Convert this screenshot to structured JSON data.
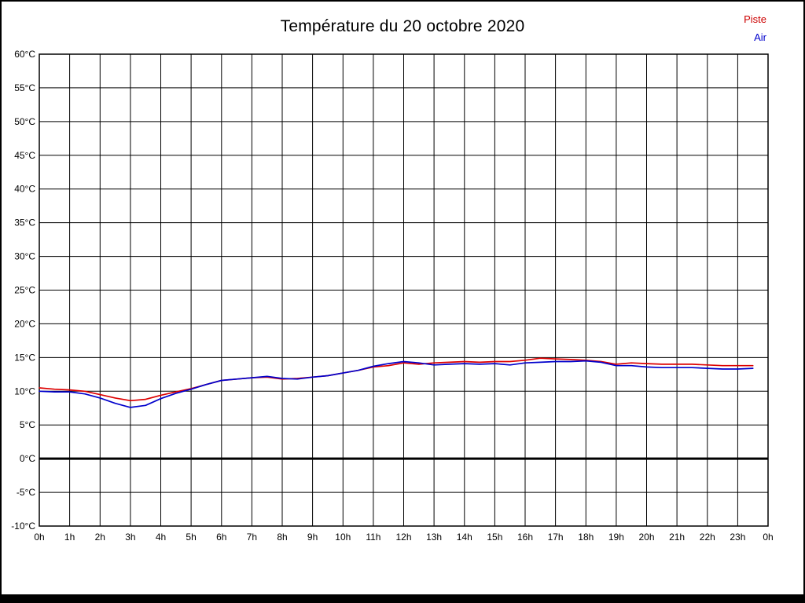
{
  "page": {
    "background": "#ffffff",
    "border_color": "#000000"
  },
  "chart_data": {
    "type": "line",
    "title": "Température du 20 octobre 2020",
    "xlabel": "",
    "ylabel": "",
    "ylim": [
      -10,
      60
    ],
    "grid": true,
    "grid_color": "#000000",
    "axis_text_color": "#000000",
    "zero_line": {
      "value": 0,
      "color": "#000000",
      "width": 3
    },
    "y_tick_values": [
      -10,
      -5,
      0,
      5,
      10,
      15,
      20,
      25,
      30,
      35,
      40,
      45,
      50,
      55,
      60
    ],
    "y_tick_labels": [
      "-10°C",
      "-5°C",
      "0°C",
      "5°C",
      "10°C",
      "15°C",
      "20°C",
      "25°C",
      "30°C",
      "35°C",
      "40°C",
      "45°C",
      "50°C",
      "55°C",
      "60°C"
    ],
    "x_tick_labels": [
      "0h",
      "1h",
      "2h",
      "3h",
      "4h",
      "5h",
      "6h",
      "7h",
      "8h",
      "9h",
      "10h",
      "11h",
      "12h",
      "13h",
      "14h",
      "15h",
      "16h",
      "17h",
      "18h",
      "19h",
      "20h",
      "21h",
      "22h",
      "23h",
      "0h"
    ],
    "x_start": 0,
    "x_step_hours": 0.5,
    "legend": [
      {
        "label": "Piste",
        "color": "#cc0000"
      },
      {
        "label": "Air",
        "color": "#0000cc"
      }
    ],
    "series": [
      {
        "name": "Piste",
        "color": "#dd0000",
        "values": [
          10.5,
          10.3,
          10.2,
          10.0,
          9.5,
          9.0,
          8.6,
          8.8,
          9.4,
          9.9,
          10.4,
          11.0,
          11.6,
          11.8,
          12.0,
          12.1,
          11.8,
          11.9,
          12.1,
          12.3,
          12.7,
          13.1,
          13.6,
          13.8,
          14.2,
          14.0,
          14.2,
          14.3,
          14.4,
          14.3,
          14.4,
          14.4,
          14.6,
          14.9,
          14.8,
          14.7,
          14.6,
          14.4,
          14.0,
          14.2,
          14.1,
          14.0,
          14.0,
          14.0,
          13.9,
          13.8,
          13.8,
          13.8
        ]
      },
      {
        "name": "Air",
        "color": "#0000cc",
        "values": [
          10.0,
          9.9,
          9.9,
          9.6,
          9.0,
          8.2,
          7.6,
          7.9,
          8.9,
          9.7,
          10.3,
          11.0,
          11.6,
          11.8,
          12.0,
          12.2,
          11.9,
          11.8,
          12.1,
          12.3,
          12.7,
          13.1,
          13.7,
          14.1,
          14.4,
          14.2,
          13.9,
          14.0,
          14.1,
          14.0,
          14.1,
          13.9,
          14.2,
          14.3,
          14.4,
          14.4,
          14.5,
          14.3,
          13.8,
          13.8,
          13.6,
          13.5,
          13.5,
          13.5,
          13.4,
          13.3,
          13.3,
          13.4
        ]
      }
    ]
  }
}
